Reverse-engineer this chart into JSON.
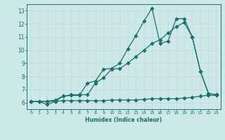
{
  "xlabel": "Humidex (Indice chaleur)",
  "bg_color": "#cce8e8",
  "line_color": "#1a7070",
  "grid_color": "#b0d0d0",
  "xlim": [
    -0.5,
    23.5
  ],
  "ylim": [
    5.5,
    13.5
  ],
  "xticks": [
    0,
    1,
    2,
    3,
    4,
    5,
    6,
    7,
    8,
    9,
    10,
    11,
    12,
    13,
    14,
    15,
    16,
    17,
    18,
    19,
    20,
    21,
    22,
    23
  ],
  "yticks": [
    6,
    7,
    8,
    9,
    10,
    11,
    12,
    13
  ],
  "series": [
    {
      "x": [
        0,
        1,
        2,
        3,
        4,
        5,
        6,
        7,
        8,
        9,
        10,
        11,
        12,
        13,
        14,
        15,
        16,
        17,
        18,
        19,
        20,
        21,
        22,
        23
      ],
      "y": [
        6.1,
        6.1,
        6.1,
        6.1,
        6.15,
        6.15,
        6.15,
        6.15,
        6.15,
        6.15,
        6.2,
        6.2,
        6.2,
        6.2,
        6.25,
        6.3,
        6.3,
        6.3,
        6.3,
        6.35,
        6.4,
        6.5,
        6.55,
        6.55
      ]
    },
    {
      "x": [
        0,
        1,
        2,
        3,
        4,
        5,
        6,
        7,
        8,
        9,
        10,
        11,
        12,
        13,
        14,
        15,
        16,
        17,
        18,
        19,
        20,
        21,
        22,
        23
      ],
      "y": [
        6.1,
        6.1,
        5.85,
        6.1,
        6.5,
        6.55,
        6.55,
        7.5,
        7.65,
        8.55,
        8.6,
        9.0,
        10.1,
        11.1,
        12.2,
        13.2,
        10.5,
        10.7,
        12.4,
        12.4,
        11.0,
        8.4,
        6.7,
        6.6
      ]
    },
    {
      "x": [
        0,
        1,
        2,
        3,
        4,
        5,
        6,
        7,
        8,
        9,
        10,
        11,
        12,
        13,
        14,
        15,
        16,
        17,
        18,
        19,
        20,
        21,
        22,
        23
      ],
      "y": [
        6.1,
        6.1,
        6.1,
        6.2,
        6.5,
        6.6,
        6.6,
        6.6,
        7.5,
        7.9,
        8.55,
        8.6,
        9.0,
        9.5,
        10.0,
        10.5,
        10.8,
        11.3,
        11.8,
        12.1,
        11.0,
        8.4,
        6.7,
        6.6
      ]
    }
  ]
}
